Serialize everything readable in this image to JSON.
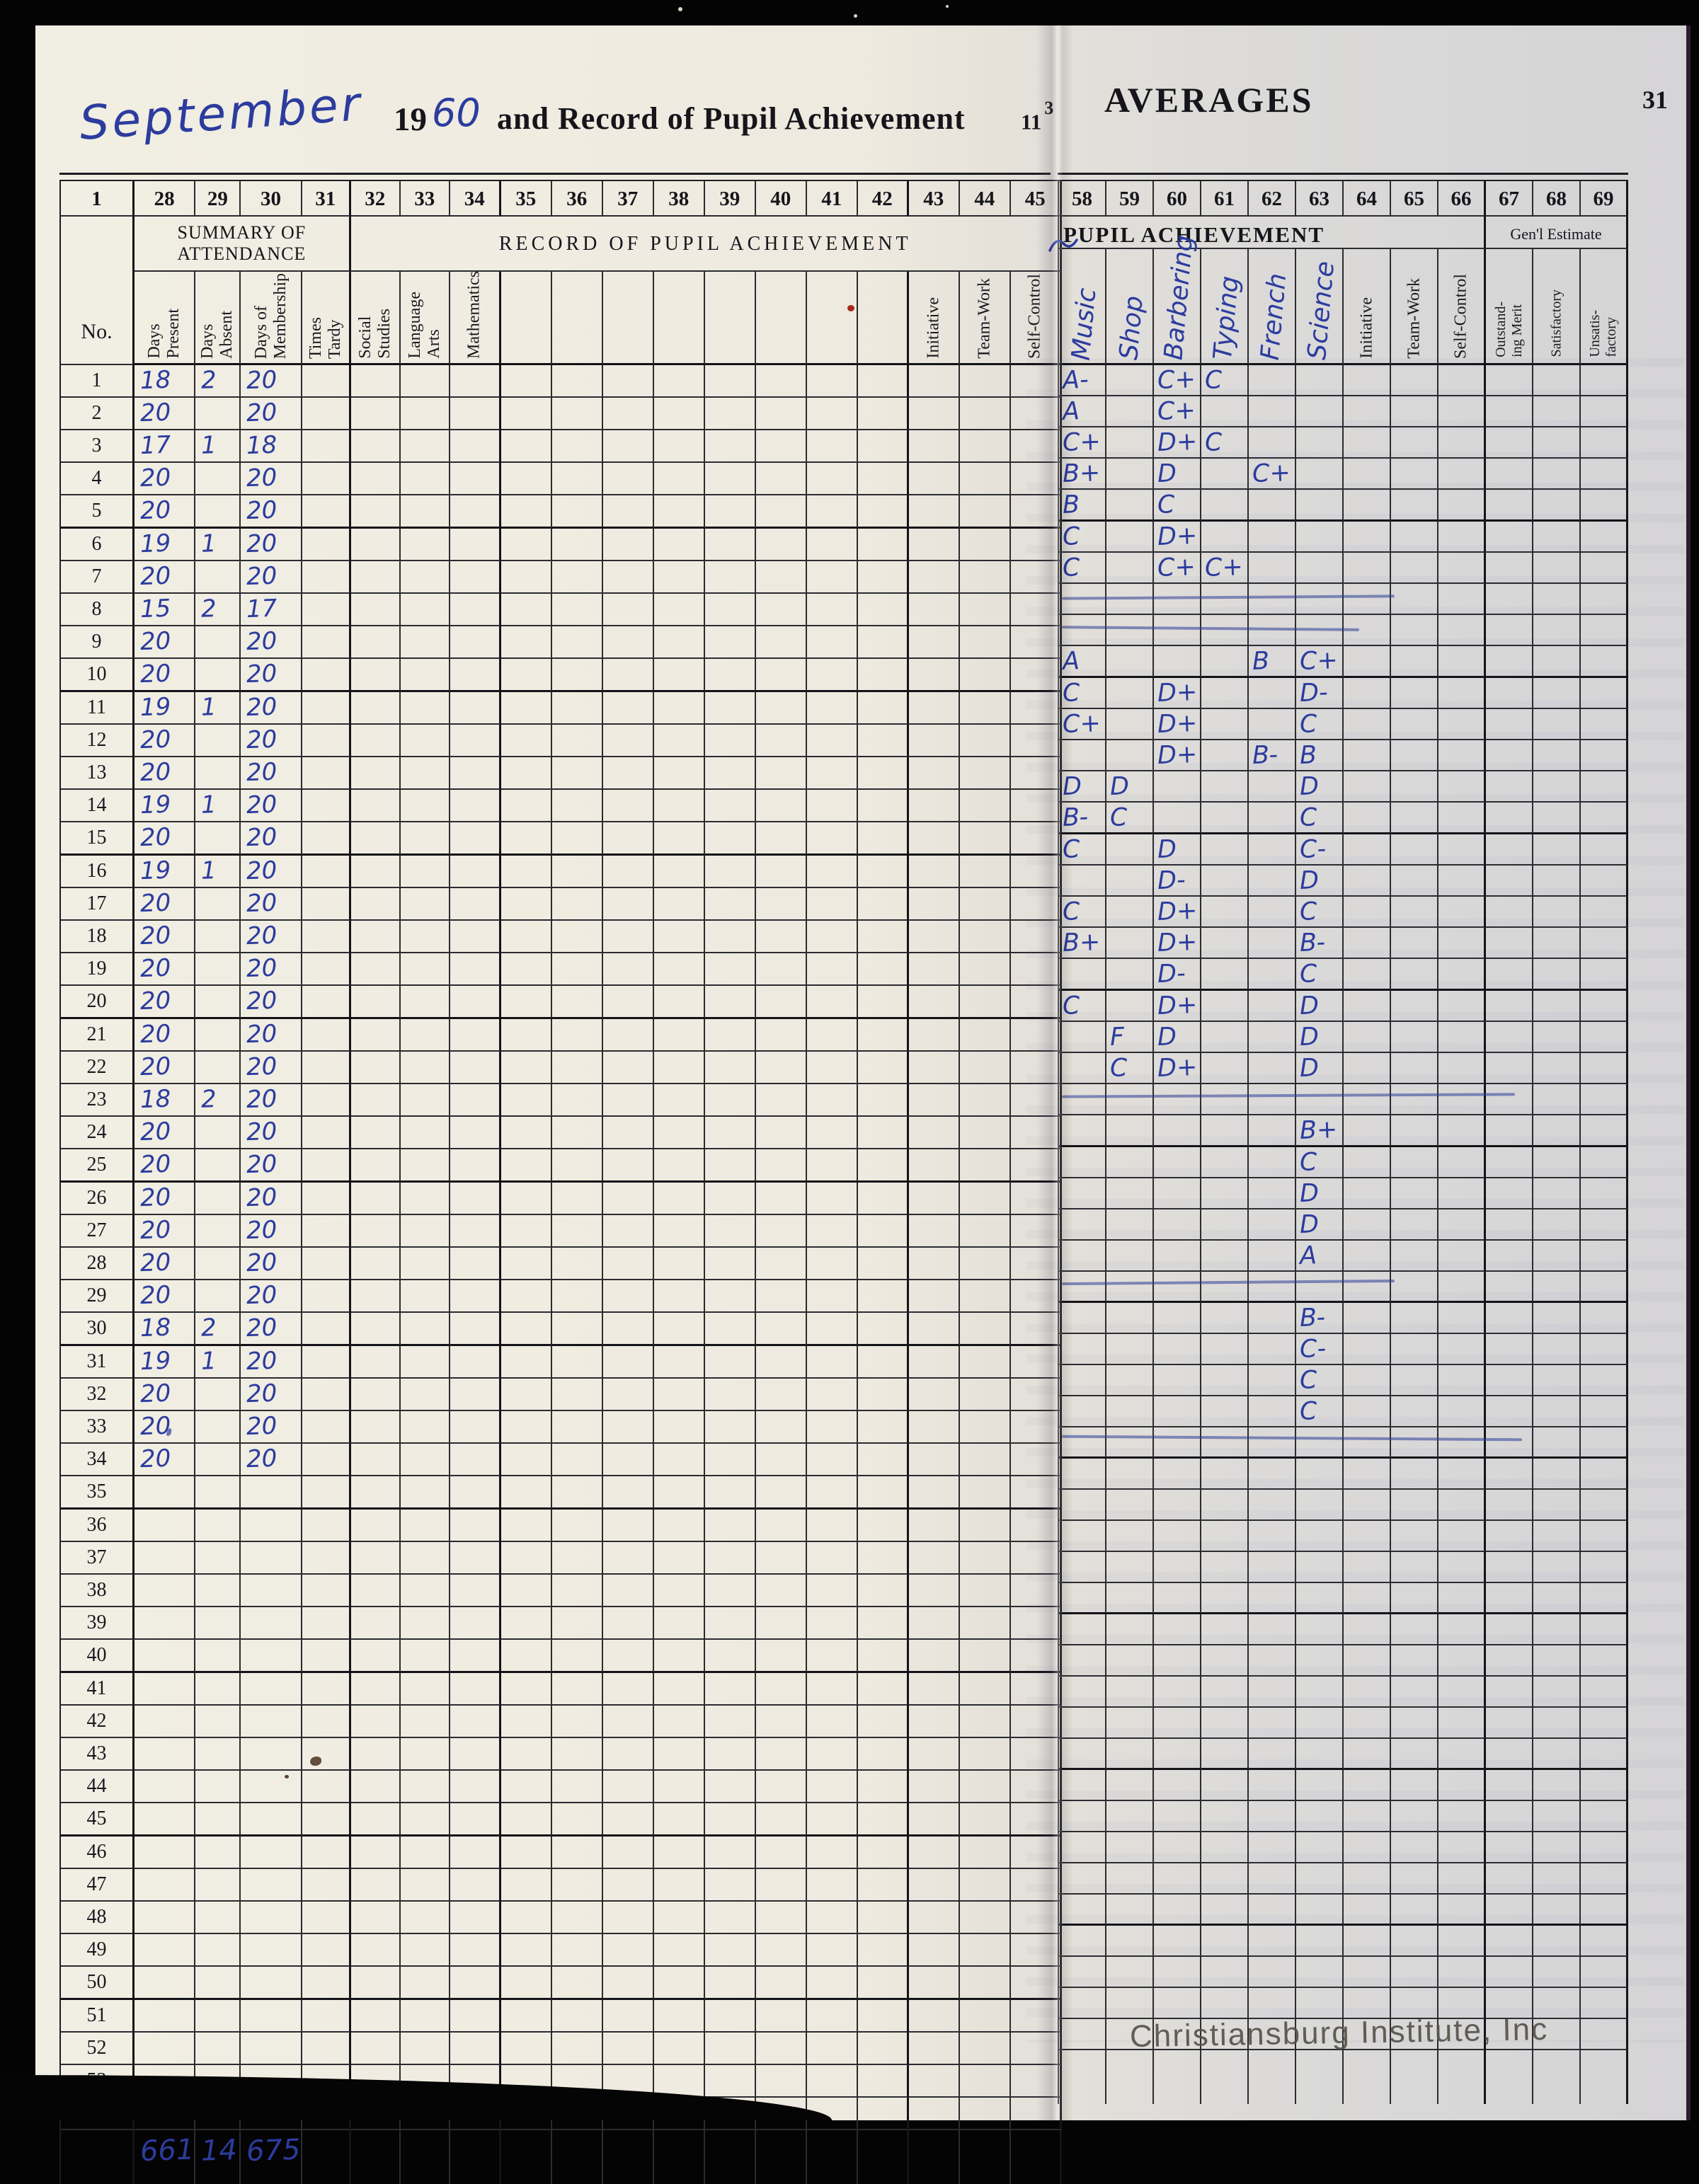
{
  "page_left": {
    "month_written": "September",
    "year_printed": "19",
    "year_written": "60",
    "title": "and Record of Pupil Achievement",
    "page_number": "11",
    "page_number_sup": "3",
    "col_numbers": [
      "1",
      "28",
      "29",
      "30",
      "31",
      "32",
      "33",
      "34",
      "35",
      "36",
      "37",
      "38",
      "39",
      "40",
      "41",
      "42",
      "43",
      "44",
      "45"
    ],
    "no_label": "No.",
    "attendance_header": "SUMMARY OF\nATTENDANCE",
    "achievement_header": "RECORD OF PUPIL ACHIEVEMENT",
    "attendance_cols": [
      "Days\nPresent",
      "Days\nAbsent",
      "Days of\nMembership",
      "Times\nTardy"
    ],
    "subject_cols": [
      "Social\nStudies",
      "Language\nArts",
      "Mathematics"
    ],
    "blank_col_count": 8,
    "conduct_cols": [
      "Initiative",
      "Team-Work",
      "Self-Control"
    ],
    "totals": {
      "days_present": "661",
      "days_absent": "14",
      "days_of_membership": "675"
    }
  },
  "page_right": {
    "title": "AVERAGES",
    "page_number": "31",
    "subtitle": "PUPIL ACHIEVEMENT",
    "col_numbers": [
      "58",
      "59",
      "60",
      "61",
      "62",
      "63",
      "64",
      "65",
      "66",
      "67",
      "68",
      "69"
    ],
    "written_cols": [
      "Music",
      "Shop",
      "Barbering",
      "Typing",
      "French",
      "Science"
    ],
    "printed_cols": [
      "Initiative",
      "Team-Work",
      "Self-Control"
    ],
    "genl_estimate_label": "Gen'l Estimate",
    "genl_cols": [
      "Outstand-\ning Merit",
      "Satisfactory",
      "Unsatis-\nfactory"
    ]
  },
  "row_count": 54,
  "rows": [
    {
      "no": 1,
      "present": "18",
      "absent": "2",
      "membership": "20",
      "music": "A-",
      "barbering": "C+",
      "typing": "C"
    },
    {
      "no": 2,
      "present": "20",
      "membership": "20",
      "music": "A",
      "barbering": "C+"
    },
    {
      "no": 3,
      "present": "17",
      "absent": "1",
      "membership": "18",
      "music": "C+",
      "barbering": "D+",
      "typing": "C"
    },
    {
      "no": 4,
      "present": "20",
      "membership": "20",
      "music": "B+",
      "barbering": "D",
      "french": "C+"
    },
    {
      "no": 5,
      "present": "20",
      "membership": "20",
      "music": "B",
      "barbering": "C"
    },
    {
      "no": 6,
      "present": "19",
      "absent": "1",
      "membership": "20",
      "music": "C",
      "barbering": "D+"
    },
    {
      "no": 7,
      "present": "20",
      "membership": "20",
      "music": "C",
      "barbering": "C+",
      "typing": "C+"
    },
    {
      "no": 8,
      "present": "15",
      "absent": "2",
      "membership": "17",
      "strike": true
    },
    {
      "no": 9,
      "present": "20",
      "membership": "20",
      "strike": true
    },
    {
      "no": 10,
      "present": "20",
      "membership": "20",
      "music": "A",
      "french": "B",
      "science": "C+"
    },
    {
      "no": 11,
      "present": "19",
      "absent": "1",
      "membership": "20",
      "music": "C",
      "barbering": "D+",
      "science": "D-"
    },
    {
      "no": 12,
      "present": "20",
      "membership": "20",
      "music": "C+",
      "barbering": "D+",
      "science": "C"
    },
    {
      "no": 13,
      "present": "20",
      "membership": "20",
      "barbering": "D+",
      "french": "B-",
      "science": "B"
    },
    {
      "no": 14,
      "present": "19",
      "absent": "1",
      "membership": "20",
      "music": "D",
      "shop": "D",
      "science": "D"
    },
    {
      "no": 15,
      "present": "20",
      "membership": "20",
      "music": "B-",
      "shop": "C",
      "science": "C"
    },
    {
      "no": 16,
      "present": "19",
      "absent": "1",
      "membership": "20",
      "music": "C",
      "barbering": "D",
      "science": "C-"
    },
    {
      "no": 17,
      "present": "20",
      "membership": "20",
      "barbering": "D-",
      "science": "D"
    },
    {
      "no": 18,
      "present": "20",
      "membership": "20",
      "music": "C",
      "barbering": "D+",
      "science": "C"
    },
    {
      "no": 19,
      "present": "20",
      "membership": "20",
      "music": "B+",
      "barbering": "D+",
      "science": "B-"
    },
    {
      "no": 20,
      "present": "20",
      "membership": "20",
      "barbering": "D-",
      "science": "C"
    },
    {
      "no": 21,
      "present": "20",
      "membership": "20",
      "music": "C",
      "barbering": "D+",
      "science": "D"
    },
    {
      "no": 22,
      "present": "20",
      "membership": "20",
      "shop": "F",
      "barbering": "D",
      "science": "D"
    },
    {
      "no": 23,
      "present": "18",
      "absent": "2",
      "membership": "20",
      "shop": "C",
      "barbering": "D+",
      "science": "D"
    },
    {
      "no": 24,
      "present": "20",
      "membership": "20",
      "strike": true
    },
    {
      "no": 25,
      "present": "20",
      "membership": "20",
      "science": "B+"
    },
    {
      "no": 26,
      "present": "20",
      "membership": "20",
      "science": "C"
    },
    {
      "no": 27,
      "present": "20",
      "membership": "20",
      "science": "D"
    },
    {
      "no": 28,
      "present": "20",
      "membership": "20",
      "science": "D"
    },
    {
      "no": 29,
      "present": "20",
      "membership": "20",
      "science": "A"
    },
    {
      "no": 30,
      "present": "18",
      "absent": "2",
      "membership": "20",
      "strike": true
    },
    {
      "no": 31,
      "present": "19",
      "absent": "1",
      "membership": "20",
      "science": "B-"
    },
    {
      "no": 32,
      "present": "20",
      "membership": "20",
      "science": "C-"
    },
    {
      "no": 33,
      "present": "20",
      "membership": "20",
      "science": "C"
    },
    {
      "no": 34,
      "present": "20",
      "membership": "20",
      "science": "C"
    },
    {
      "no": 35,
      "strike": true
    }
  ],
  "ink_color": "#2c3c9e",
  "watermark": "Christiansburg Institute, Inc"
}
